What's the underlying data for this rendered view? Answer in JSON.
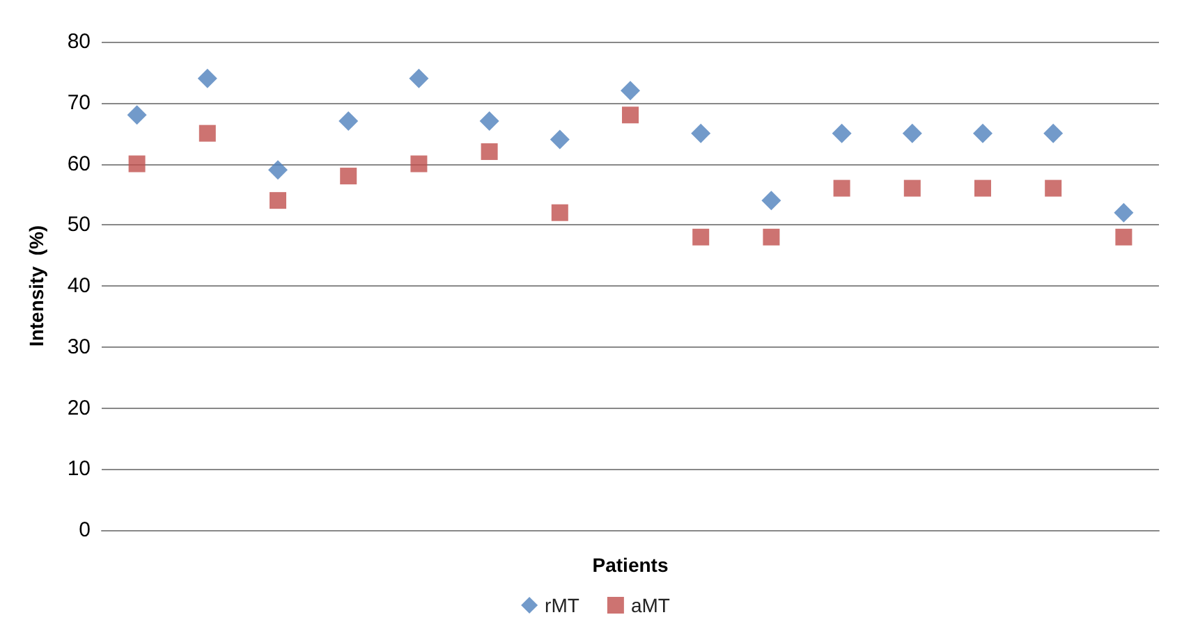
{
  "chart_data": {
    "type": "scatter",
    "xlabel": "Patients",
    "ylabel": "Intensity  (%)",
    "categories": [
      null,
      null,
      null,
      null,
      null,
      null,
      null,
      null,
      null,
      null,
      null,
      null,
      null,
      null,
      null
    ],
    "series": [
      {
        "name": "rMT",
        "color": "#4f81bd",
        "marker": "diamond",
        "values": [
          68,
          74,
          59,
          67,
          74,
          67,
          64,
          72,
          65,
          54,
          65,
          65,
          65,
          65,
          52
        ]
      },
      {
        "name": "aMT",
        "color": "#c0504d",
        "marker": "square",
        "values": [
          60,
          65,
          54,
          58,
          60,
          62,
          52,
          68,
          48,
          48,
          56,
          56,
          56,
          56,
          48
        ]
      }
    ],
    "ylim": [
      0,
      80
    ],
    "yticks": [
      0,
      10,
      20,
      30,
      40,
      50,
      60,
      70,
      80
    ],
    "grid": "y",
    "legend": "bottom"
  }
}
